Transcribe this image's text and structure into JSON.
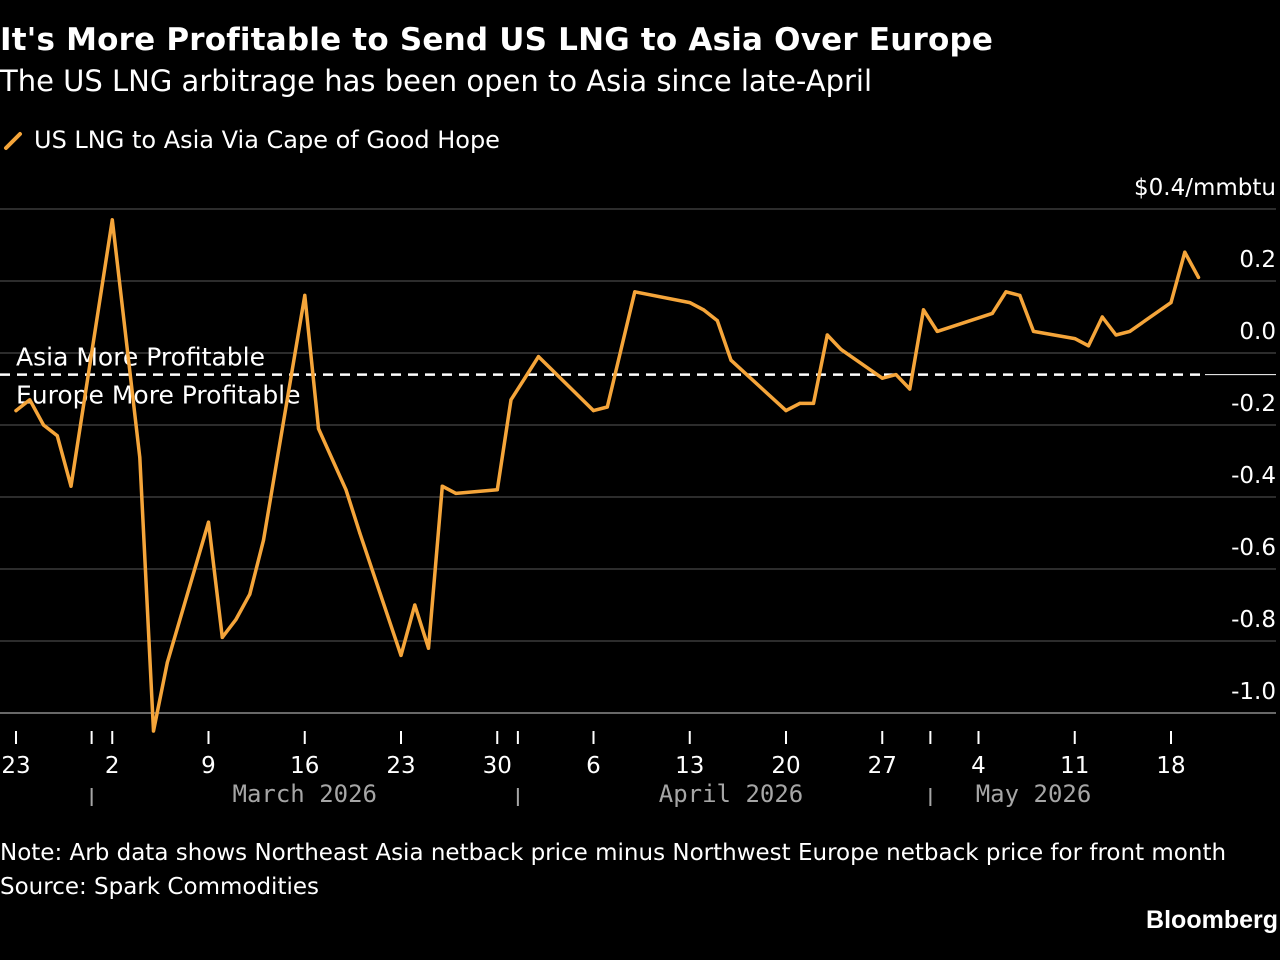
{
  "title": "It's More Profitable to Send US LNG to Asia Over Europe",
  "subtitle": "The US LNG arbitrage has been open to Asia since late-April",
  "colors": {
    "background": "#000000",
    "series": "#f5a53a",
    "grid": "#595959",
    "text": "#ffffff",
    "muted": "#a6a6a6",
    "threshold": "#ffffff"
  },
  "note": "Note: Arb data shows Northeast Asia netback price minus Northwest Europe netback price for front month",
  "source": "Source: Spark Commodities",
  "brand": "Bloomberg",
  "chart_data": {
    "type": "line",
    "title": "It's More Profitable to Send US LNG to Asia Over Europe",
    "subtitle": "The US LNG arbitrage has been open to Asia since late-April",
    "ylim": [
      -1.0,
      0.4
    ],
    "y_unit_label": "$0.4/mmbtu",
    "y_ticks": [
      0.2,
      0.0,
      -0.2,
      -0.4,
      -0.6,
      -0.8,
      -1.0
    ],
    "y_tick_labels": [
      "0.2",
      "0.0",
      "-0.2",
      "-0.4",
      "-0.6",
      "-0.8",
      "-1.0"
    ],
    "y_axis_position": "right",
    "grid": true,
    "legend_position": "top-left",
    "x_tick_labels": [
      {
        "date": "2026-02-23",
        "label": "23"
      },
      {
        "date": "2026-03-02",
        "label": "2"
      },
      {
        "date": "2026-03-09",
        "label": "9"
      },
      {
        "date": "2026-03-16",
        "label": "16"
      },
      {
        "date": "2026-03-23",
        "label": "23"
      },
      {
        "date": "2026-03-30",
        "label": "30"
      },
      {
        "date": "2026-04-06",
        "label": "6"
      },
      {
        "date": "2026-04-13",
        "label": "13"
      },
      {
        "date": "2026-04-20",
        "label": "20"
      },
      {
        "date": "2026-04-27",
        "label": "27"
      },
      {
        "date": "2026-05-04",
        "label": "4"
      },
      {
        "date": "2026-05-11",
        "label": "11"
      },
      {
        "date": "2026-05-18",
        "label": "18"
      }
    ],
    "month_boundaries": [
      "2026-03-01",
      "2026-04-01",
      "2026-05-01"
    ],
    "month_labels": [
      {
        "date": "2026-03-16",
        "label": "March 2026"
      },
      {
        "date": "2026-04-16",
        "label": "April 2026"
      },
      {
        "date": "2026-05-08",
        "label": "May 2026"
      }
    ],
    "threshold": {
      "value": -0.06,
      "label_above": "Asia More Profitable",
      "label_below": "Europe More Profitable"
    },
    "series": [
      {
        "name": "US LNG to Asia Via Cape of Good Hope",
        "color": "#f5a53a",
        "points": [
          [
            "2026-02-23",
            -0.16
          ],
          [
            "2026-02-24",
            -0.13
          ],
          [
            "2026-02-25",
            -0.2
          ],
          [
            "2026-02-26",
            -0.23
          ],
          [
            "2026-02-27",
            -0.37
          ],
          [
            "2026-03-02",
            0.37
          ],
          [
            "2026-03-04",
            -0.29
          ],
          [
            "2026-03-05",
            -1.05
          ],
          [
            "2026-03-06",
            -0.86
          ],
          [
            "2026-03-09",
            -0.47
          ],
          [
            "2026-03-10",
            -0.79
          ],
          [
            "2026-03-11",
            -0.74
          ],
          [
            "2026-03-12",
            -0.67
          ],
          [
            "2026-03-13",
            -0.52
          ],
          [
            "2026-03-16",
            0.16
          ],
          [
            "2026-03-17",
            -0.21
          ],
          [
            "2026-03-19",
            -0.38
          ],
          [
            "2026-03-20",
            -0.5
          ],
          [
            "2026-03-23",
            -0.84
          ],
          [
            "2026-03-24",
            -0.7
          ],
          [
            "2026-03-25",
            -0.82
          ],
          [
            "2026-03-26",
            -0.37
          ],
          [
            "2026-03-27",
            -0.39
          ],
          [
            "2026-03-30",
            -0.38
          ],
          [
            "2026-03-31",
            -0.13
          ],
          [
            "2026-04-01",
            -0.07
          ],
          [
            "2026-04-02",
            -0.01
          ],
          [
            "2026-04-06",
            -0.16
          ],
          [
            "2026-04-07",
            -0.15
          ],
          [
            "2026-04-09",
            0.17
          ],
          [
            "2026-04-13",
            0.14
          ],
          [
            "2026-04-14",
            0.12
          ],
          [
            "2026-04-15",
            0.09
          ],
          [
            "2026-04-16",
            -0.02
          ],
          [
            "2026-04-20",
            -0.16
          ],
          [
            "2026-04-21",
            -0.14
          ],
          [
            "2026-04-22",
            -0.14
          ],
          [
            "2026-04-23",
            0.05
          ],
          [
            "2026-04-24",
            0.01
          ],
          [
            "2026-04-27",
            -0.07
          ],
          [
            "2026-04-28",
            -0.06
          ],
          [
            "2026-04-29",
            -0.1
          ],
          [
            "2026-04-30",
            0.12
          ],
          [
            "2026-05-01",
            0.06
          ],
          [
            "2026-05-05",
            0.11
          ],
          [
            "2026-05-06",
            0.17
          ],
          [
            "2026-05-07",
            0.16
          ],
          [
            "2026-05-08",
            0.06
          ],
          [
            "2026-05-11",
            0.04
          ],
          [
            "2026-05-12",
            0.02
          ],
          [
            "2026-05-13",
            0.1
          ],
          [
            "2026-05-14",
            0.05
          ],
          [
            "2026-05-15",
            0.06
          ],
          [
            "2026-05-18",
            0.14
          ],
          [
            "2026-05-19",
            0.28
          ],
          [
            "2026-05-20",
            0.21
          ]
        ]
      }
    ]
  }
}
